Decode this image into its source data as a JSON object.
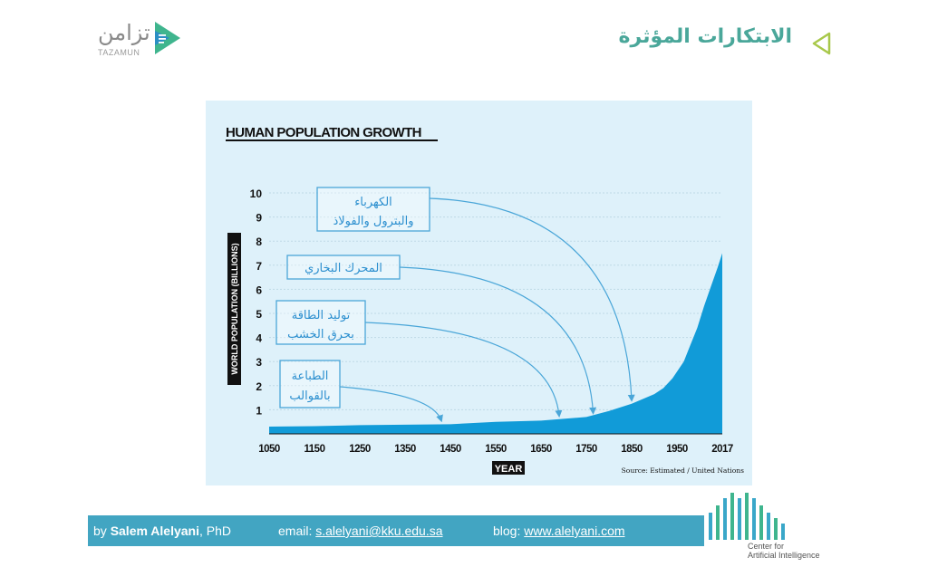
{
  "header": {
    "title": "الابتكارات المؤثرة",
    "logo_arabic": "تزامن",
    "logo_latin": "TAZAMUN"
  },
  "colors": {
    "accent": "#4aa79a",
    "chart_bg": "#def1fa",
    "area_fill": "#119bd8",
    "annotation": "#4aa6d8",
    "footer_bg": "#42a5c2"
  },
  "chart_data": {
    "type": "area",
    "title": "HUMAN POPULATION GROWTH",
    "xlabel": "YEAR",
    "ylabel": "WORLD POPULATION (BILLIONS)",
    "source": "Source: Estimated / United Nations",
    "xlim": [
      1050,
      2017
    ],
    "ylim": [
      0,
      10
    ],
    "x_ticks": [
      1050,
      1150,
      1250,
      1350,
      1450,
      1550,
      1650,
      1750,
      1850,
      1950,
      2017
    ],
    "y_ticks": [
      1,
      2,
      3,
      4,
      5,
      6,
      7,
      8,
      9,
      10
    ],
    "grid": true,
    "series": [
      {
        "x": [
          1050,
          1150,
          1250,
          1350,
          1450,
          1550,
          1650,
          1750,
          1800,
          1850,
          1900,
          1920,
          1940,
          1960,
          1970,
          1980,
          1990,
          2000,
          2010,
          2017
        ],
        "values": [
          0.3,
          0.32,
          0.36,
          0.38,
          0.4,
          0.5,
          0.55,
          0.7,
          0.95,
          1.25,
          1.65,
          1.9,
          2.3,
          3.0,
          3.7,
          4.4,
          5.3,
          6.1,
          6.9,
          7.5
        ]
      }
    ],
    "annotations": [
      {
        "lines": [
          "الكهرباء",
          "والبترول والفولاذ"
        ],
        "target_x": 1850,
        "target_y": 1.25
      },
      {
        "lines": [
          "المحرك البخاري"
        ],
        "target_x": 1765,
        "target_y": 0.72
      },
      {
        "lines": [
          "توليد الطاقة",
          "بحرق الخشب"
        ],
        "target_x": 1690,
        "target_y": 0.6
      },
      {
        "lines": [
          "الطباعة",
          "بالقوالب"
        ],
        "target_x": 1430,
        "target_y": 0.4
      }
    ]
  },
  "footer": {
    "author_prefix": "by ",
    "author_name": "Salem Alelyani",
    "author_suffix": ", PhD",
    "email_label": "email: ",
    "email": "s.alelyani@kku.edu.sa",
    "blog_label": "blog: ",
    "blog": "www.alelyani.com",
    "center_line1": "Center for",
    "center_line2": "Artificial Intelligence"
  }
}
